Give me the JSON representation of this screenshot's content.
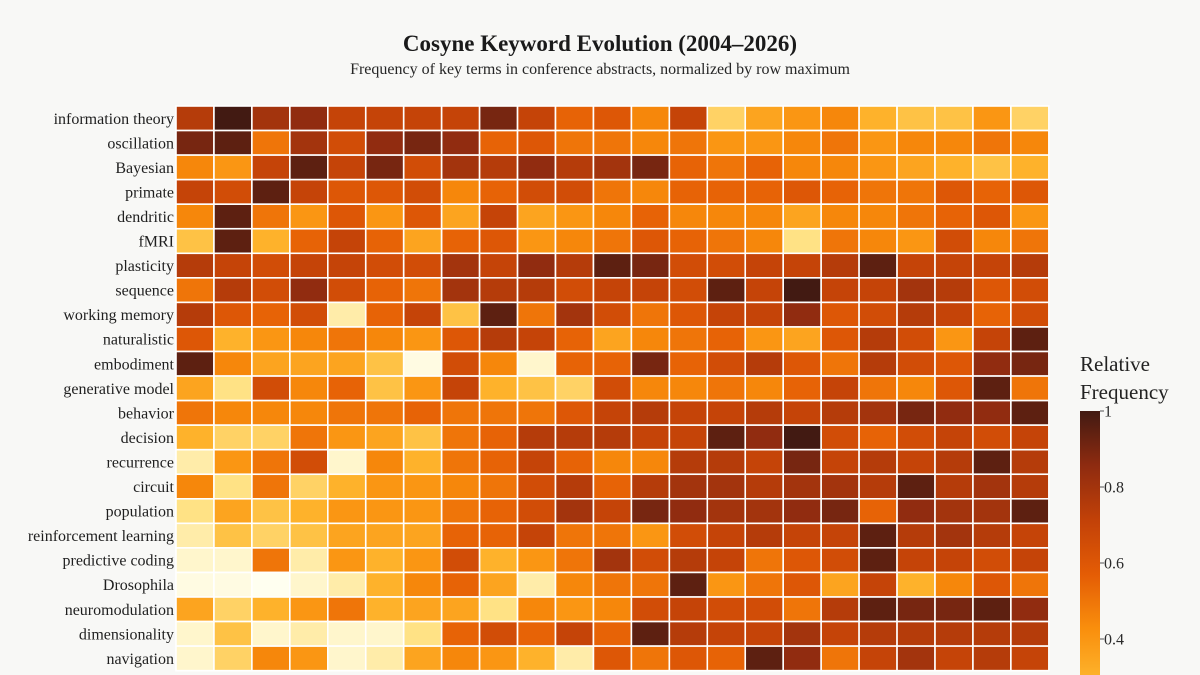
{
  "chart_data": {
    "type": "heatmap",
    "title": "Cosyne Keyword Evolution (2004–2026)",
    "subtitle": "Frequency of key terms in conference abstracts, normalized by row maximum",
    "x_columns": 23,
    "y_labels": [
      "information theory",
      "oscillation",
      "Bayesian",
      "primate",
      "dendritic",
      "fMRI",
      "plasticity",
      "sequence",
      "working memory",
      "naturalistic",
      "embodiment",
      "generative model",
      "behavior",
      "decision",
      "recurrence",
      "circuit",
      "population",
      "reinforcement learning",
      "predictive coding",
      "Drosophila",
      "neuromodulation",
      "dimensionality",
      "navigation"
    ],
    "values": [
      [
        0.75,
        1.0,
        0.8,
        0.85,
        0.7,
        0.7,
        0.7,
        0.7,
        0.9,
        0.7,
        0.55,
        0.6,
        0.45,
        0.7,
        0.2,
        0.35,
        0.4,
        0.45,
        0.3,
        0.25,
        0.25,
        0.4,
        0.2
      ],
      [
        0.9,
        0.95,
        0.5,
        0.8,
        0.65,
        0.85,
        0.9,
        0.85,
        0.55,
        0.6,
        0.5,
        0.5,
        0.45,
        0.5,
        0.4,
        0.4,
        0.45,
        0.5,
        0.4,
        0.45,
        0.45,
        0.5,
        0.45
      ],
      [
        0.45,
        0.4,
        0.7,
        0.95,
        0.7,
        0.9,
        0.65,
        0.8,
        0.75,
        0.85,
        0.75,
        0.8,
        0.9,
        0.55,
        0.5,
        0.55,
        0.45,
        0.45,
        0.4,
        0.35,
        0.3,
        0.25,
        0.3
      ],
      [
        0.7,
        0.65,
        0.95,
        0.7,
        0.6,
        0.6,
        0.65,
        0.45,
        0.55,
        0.65,
        0.65,
        0.5,
        0.45,
        0.55,
        0.55,
        0.55,
        0.6,
        0.55,
        0.5,
        0.5,
        0.6,
        0.55,
        0.6
      ],
      [
        0.45,
        0.95,
        0.5,
        0.4,
        0.6,
        0.4,
        0.6,
        0.35,
        0.7,
        0.35,
        0.4,
        0.45,
        0.55,
        0.45,
        0.45,
        0.45,
        0.35,
        0.45,
        0.45,
        0.5,
        0.55,
        0.6,
        0.4
      ],
      [
        0.25,
        0.95,
        0.3,
        0.55,
        0.7,
        0.55,
        0.35,
        0.55,
        0.6,
        0.4,
        0.45,
        0.5,
        0.6,
        0.55,
        0.5,
        0.45,
        0.15,
        0.5,
        0.45,
        0.4,
        0.65,
        0.45,
        0.5
      ],
      [
        0.75,
        0.7,
        0.65,
        0.7,
        0.7,
        0.65,
        0.65,
        0.8,
        0.7,
        0.85,
        0.75,
        0.95,
        0.9,
        0.65,
        0.65,
        0.7,
        0.7,
        0.75,
        0.95,
        0.7,
        0.7,
        0.7,
        0.75
      ],
      [
        0.5,
        0.75,
        0.65,
        0.85,
        0.65,
        0.55,
        0.5,
        0.8,
        0.75,
        0.75,
        0.65,
        0.7,
        0.7,
        0.65,
        0.95,
        0.7,
        1.0,
        0.7,
        0.7,
        0.8,
        0.75,
        0.6,
        0.65
      ],
      [
        0.75,
        0.6,
        0.55,
        0.65,
        0.1,
        0.55,
        0.7,
        0.25,
        0.95,
        0.5,
        0.8,
        0.65,
        0.5,
        0.6,
        0.7,
        0.7,
        0.85,
        0.6,
        0.65,
        0.75,
        0.7,
        0.55,
        0.65
      ],
      [
        0.6,
        0.3,
        0.4,
        0.45,
        0.5,
        0.45,
        0.4,
        0.6,
        0.75,
        0.7,
        0.55,
        0.35,
        0.45,
        0.5,
        0.55,
        0.4,
        0.35,
        0.6,
        0.75,
        0.65,
        0.4,
        0.7,
        0.95
      ],
      [
        0.95,
        0.45,
        0.35,
        0.35,
        0.35,
        0.25,
        0.02,
        0.65,
        0.45,
        0.05,
        0.55,
        0.55,
        0.9,
        0.55,
        0.65,
        0.75,
        0.6,
        0.5,
        0.75,
        0.65,
        0.6,
        0.85,
        0.9
      ],
      [
        0.35,
        0.15,
        0.65,
        0.45,
        0.55,
        0.25,
        0.4,
        0.7,
        0.3,
        0.25,
        0.2,
        0.65,
        0.45,
        0.45,
        0.5,
        0.45,
        0.55,
        0.7,
        0.5,
        0.45,
        0.6,
        0.95,
        0.5
      ],
      [
        0.5,
        0.45,
        0.45,
        0.45,
        0.5,
        0.5,
        0.55,
        0.5,
        0.5,
        0.5,
        0.6,
        0.7,
        0.75,
        0.7,
        0.7,
        0.75,
        0.7,
        0.75,
        0.8,
        0.9,
        0.85,
        0.85,
        0.95
      ],
      [
        0.3,
        0.2,
        0.2,
        0.5,
        0.4,
        0.35,
        0.25,
        0.5,
        0.55,
        0.75,
        0.75,
        0.75,
        0.7,
        0.7,
        0.95,
        0.85,
        1.0,
        0.65,
        0.55,
        0.65,
        0.7,
        0.65,
        0.7
      ],
      [
        0.1,
        0.4,
        0.5,
        0.65,
        0.05,
        0.45,
        0.3,
        0.5,
        0.55,
        0.7,
        0.55,
        0.45,
        0.45,
        0.75,
        0.75,
        0.7,
        0.9,
        0.7,
        0.75,
        0.7,
        0.75,
        0.95,
        0.75
      ],
      [
        0.45,
        0.15,
        0.5,
        0.2,
        0.3,
        0.4,
        0.4,
        0.45,
        0.5,
        0.65,
        0.75,
        0.55,
        0.75,
        0.8,
        0.8,
        0.75,
        0.8,
        0.8,
        0.75,
        0.95,
        0.75,
        0.8,
        0.75
      ],
      [
        0.15,
        0.35,
        0.25,
        0.3,
        0.4,
        0.4,
        0.4,
        0.5,
        0.55,
        0.65,
        0.8,
        0.7,
        0.9,
        0.85,
        0.8,
        0.8,
        0.85,
        0.9,
        0.55,
        0.85,
        0.8,
        0.8,
        0.95
      ],
      [
        0.1,
        0.25,
        0.2,
        0.25,
        0.35,
        0.35,
        0.35,
        0.55,
        0.55,
        0.7,
        0.5,
        0.5,
        0.4,
        0.65,
        0.7,
        0.75,
        0.7,
        0.7,
        0.95,
        0.75,
        0.8,
        0.75,
        0.7
      ],
      [
        0.05,
        0.05,
        0.5,
        0.1,
        0.4,
        0.3,
        0.4,
        0.65,
        0.3,
        0.4,
        0.5,
        0.8,
        0.65,
        0.75,
        0.7,
        0.5,
        0.6,
        0.65,
        0.95,
        0.7,
        0.7,
        0.65,
        0.7
      ],
      [
        0.02,
        0.02,
        0.0,
        0.05,
        0.1,
        0.3,
        0.45,
        0.55,
        0.35,
        0.1,
        0.45,
        0.5,
        0.5,
        0.95,
        0.4,
        0.5,
        0.6,
        0.35,
        0.7,
        0.3,
        0.45,
        0.6,
        0.5
      ],
      [
        0.35,
        0.2,
        0.3,
        0.4,
        0.5,
        0.3,
        0.35,
        0.35,
        0.15,
        0.45,
        0.4,
        0.45,
        0.65,
        0.7,
        0.65,
        0.65,
        0.5,
        0.75,
        0.95,
        0.9,
        0.9,
        0.95,
        0.85
      ],
      [
        0.05,
        0.25,
        0.05,
        0.1,
        0.05,
        0.05,
        0.15,
        0.55,
        0.65,
        0.55,
        0.7,
        0.55,
        0.95,
        0.75,
        0.7,
        0.7,
        0.8,
        0.7,
        0.75,
        0.75,
        0.75,
        0.75,
        0.75
      ],
      [
        0.05,
        0.2,
        0.45,
        0.4,
        0.05,
        0.1,
        0.35,
        0.45,
        0.4,
        0.3,
        0.1,
        0.6,
        0.5,
        0.6,
        0.55,
        0.95,
        0.85,
        0.5,
        0.7,
        0.8,
        0.7,
        0.75,
        0.7
      ]
    ],
    "colorscale": [
      "#fffff0",
      "#ffe48a",
      "#feb62e",
      "#f98e0c",
      "#e45c05",
      "#c24108",
      "#8e2b10",
      "#421a12"
    ],
    "colorbar": {
      "title": "Relative Frequency",
      "tick_values": [
        0.4,
        0.6,
        0.8,
        1
      ],
      "tick_labels": [
        "0.4",
        "0.6",
        "0.8",
        "1"
      ],
      "range": [
        0,
        1
      ]
    }
  }
}
